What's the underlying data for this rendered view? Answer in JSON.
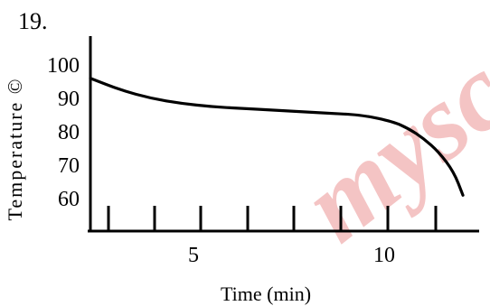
{
  "question_number": "19.",
  "watermark": {
    "text": "mysc",
    "color": "#f4c4c4"
  },
  "chart_data": {
    "type": "line",
    "title": "",
    "xlabel": "Time (min)",
    "ylabel": "Temperature ©",
    "xlim": [
      0,
      13
    ],
    "ylim": [
      50,
      105
    ],
    "x_ticks": [
      {
        "value": 5,
        "label": "5"
      },
      {
        "value": 10,
        "label": "10"
      }
    ],
    "y_ticks": [
      {
        "value": 100,
        "label": "100"
      },
      {
        "value": 90,
        "label": "90"
      },
      {
        "value": 80,
        "label": "80"
      },
      {
        "value": 70,
        "label": "70"
      },
      {
        "value": 60,
        "label": "60"
      }
    ],
    "x_tick_marks": [
      1,
      3,
      5,
      7,
      9,
      11,
      13,
      15,
      17
    ],
    "grid": false,
    "legend": "none",
    "line_color": "#000000",
    "series": [
      {
        "x": [
          0,
          1,
          2,
          3,
          4,
          5,
          6,
          7,
          8,
          9,
          10,
          10.5,
          11,
          11.5,
          12,
          12.3
        ],
        "y": [
          96,
          92.5,
          90,
          88.5,
          87.5,
          87,
          86.5,
          86,
          85.5,
          85,
          83,
          81,
          78,
          74,
          68,
          61
        ]
      }
    ]
  }
}
